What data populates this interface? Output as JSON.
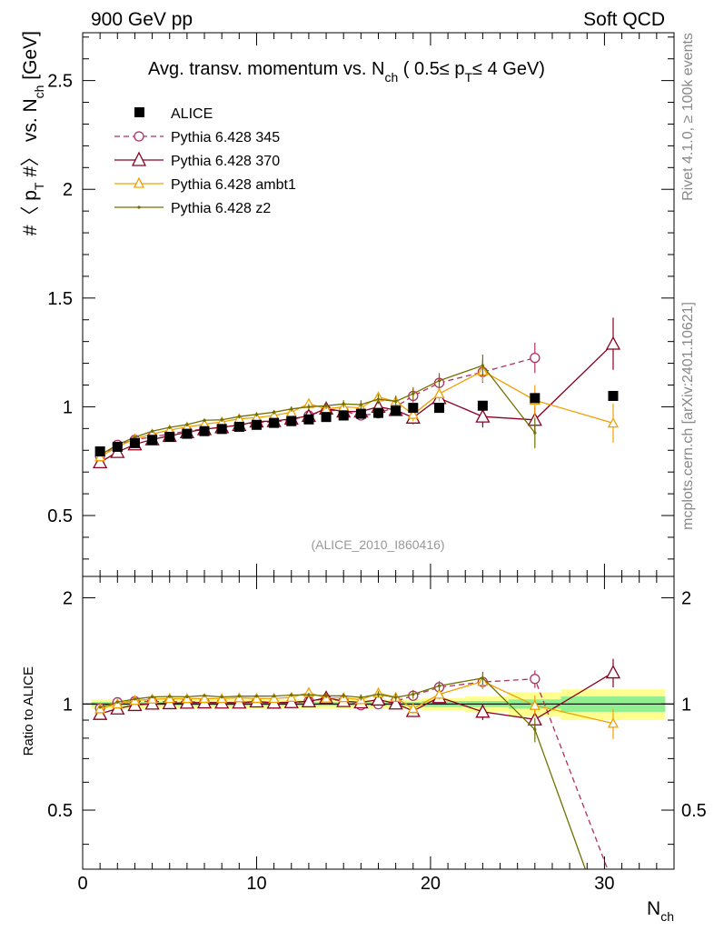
{
  "header": {
    "left": "900 GeV pp",
    "right": "Soft QCD"
  },
  "side_labels": {
    "rivet": "Rivet 4.1.0, ≥ 100k events",
    "mcplots": "mcplots.cern.ch [arXiv:2401.10621]"
  },
  "chart_data": {
    "type": "scatter",
    "title_parts": {
      "main": "Avg. transv. momentum vs. N",
      "main_sub": "ch",
      "range_open": " ( 0.5≤ p",
      "range_sub": "T",
      "range_close": "≤ 4 GeV)"
    },
    "analysis_id": "(ALICE_2010_I860416)",
    "ylabel_parts": {
      "a": "#〈 p",
      "a_sub": "T",
      "b": " #〉 vs. N",
      "b_sub": "ch",
      "c": " [GeV]"
    },
    "ratio_ylabel": "Ratio to ALICE",
    "xlabel": "N",
    "xlabel_sub": "ch",
    "xlim": [
      0,
      34
    ],
    "ylim": [
      0.22,
      2.72
    ],
    "ratio_ylim": [
      0.34,
      2.3
    ],
    "x_ticks": [
      "0",
      "10",
      "20",
      "30"
    ],
    "y_ticks": [
      "0.5",
      "1",
      "1.5",
      "2",
      "2.5"
    ],
    "ratio_y_ticks": [
      "0.5",
      "1",
      "2"
    ],
    "legend_position": "top-left",
    "colors": {
      "alice": "#000000",
      "p345": "#b03060",
      "p370": "#8b0020",
      "ambt1": "#f0a000",
      "z2": "#707000",
      "band_inner": "#90f090",
      "band_outer": "#ffff90"
    },
    "alice": {
      "name": "ALICE",
      "x": [
        1,
        2,
        3,
        4,
        5,
        6,
        7,
        8,
        9,
        10,
        11,
        12,
        13,
        14,
        15,
        16,
        17,
        18,
        19,
        20.5,
        23,
        26,
        30.5
      ],
      "y": [
        0.795,
        0.816,
        0.833,
        0.848,
        0.862,
        0.876,
        0.888,
        0.898,
        0.908,
        0.917,
        0.926,
        0.934,
        0.942,
        0.953,
        0.96,
        0.968,
        0.972,
        0.982,
        0.995,
        0.995,
        1.005,
        1.04,
        1.05
      ],
      "band": [
        {
          "x0": 0.5,
          "x1": 19.5,
          "inner": 0.012,
          "outer": 0.03
        },
        {
          "x0": 19.5,
          "x1": 22,
          "inner": 0.02,
          "outer": 0.04
        },
        {
          "x0": 22,
          "x1": 24.5,
          "inner": 0.02,
          "outer": 0.05
        },
        {
          "x0": 24.5,
          "x1": 27.5,
          "inner": 0.03,
          "outer": 0.08
        },
        {
          "x0": 27.5,
          "x1": 33.5,
          "inner": 0.05,
          "outer": 0.1
        }
      ]
    },
    "series": [
      {
        "key": "p345",
        "name": "Pythia 6.428 345",
        "marker": "circle",
        "dash": "6,4",
        "x": [
          1,
          2,
          3,
          4,
          5,
          6,
          7,
          8,
          9,
          10,
          11,
          12,
          13,
          14,
          15,
          16,
          17,
          18,
          19,
          20.5,
          23,
          26
        ],
        "y": [
          0.773,
          0.825,
          0.848,
          0.862,
          0.874,
          0.889,
          0.898,
          0.905,
          0.916,
          0.928,
          0.93,
          0.94,
          0.96,
          0.985,
          0.98,
          0.96,
          0.97,
          1.0,
          1.05,
          1.11,
          1.16,
          1.225
        ],
        "err": [
          0.006,
          0.006,
          0.006,
          0.007,
          0.007,
          0.008,
          0.008,
          0.009,
          0.009,
          0.01,
          0.01,
          0.012,
          0.013,
          0.015,
          0.017,
          0.02,
          0.022,
          0.026,
          0.03,
          0.035,
          0.05,
          0.07
        ],
        "ratio_tail": [
          [
            26,
            1.18
          ],
          [
            30.6,
            0.3
          ]
        ]
      },
      {
        "key": "p370",
        "name": "Pythia 6.428 370",
        "marker": "triangle",
        "dash": "",
        "x": [
          1,
          2,
          3,
          4,
          5,
          6,
          7,
          8,
          9,
          10,
          11,
          12,
          13,
          14,
          15,
          16,
          17,
          18,
          19,
          20.5,
          23,
          26,
          30.5
        ],
        "y": [
          0.745,
          0.792,
          0.827,
          0.85,
          0.866,
          0.883,
          0.897,
          0.906,
          0.916,
          0.932,
          0.934,
          0.945,
          0.958,
          0.992,
          0.978,
          0.978,
          1.0,
          0.985,
          0.95,
          1.04,
          0.955,
          0.94,
          1.29
        ],
        "err": [
          0.006,
          0.006,
          0.006,
          0.007,
          0.007,
          0.008,
          0.008,
          0.009,
          0.009,
          0.01,
          0.01,
          0.012,
          0.013,
          0.015,
          0.017,
          0.02,
          0.022,
          0.026,
          0.03,
          0.035,
          0.05,
          0.06,
          0.12
        ]
      },
      {
        "key": "ambt1",
        "name": "Pythia 6.428 ambt1",
        "marker": "triangle",
        "dash": "",
        "x": [
          1,
          2,
          3,
          4,
          5,
          6,
          7,
          8,
          9,
          10,
          11,
          12,
          13,
          14,
          15,
          16,
          17,
          18,
          19,
          20.5,
          23,
          26,
          30.5
        ],
        "y": [
          0.77,
          0.816,
          0.852,
          0.875,
          0.893,
          0.907,
          0.92,
          0.93,
          0.945,
          0.95,
          0.96,
          0.975,
          1.015,
          0.99,
          1.0,
          0.995,
          1.045,
          1.025,
          0.965,
          1.06,
          1.165,
          1.03,
          0.925
        ],
        "err": [
          0.006,
          0.006,
          0.006,
          0.007,
          0.007,
          0.008,
          0.008,
          0.009,
          0.009,
          0.01,
          0.01,
          0.012,
          0.013,
          0.015,
          0.017,
          0.02,
          0.022,
          0.026,
          0.03,
          0.035,
          0.05,
          0.07,
          0.09
        ]
      },
      {
        "key": "z2",
        "name": "Pythia 6.428 z2",
        "marker": "dot",
        "dash": "",
        "x": [
          1,
          2,
          3,
          4,
          5,
          6,
          7,
          8,
          9,
          10,
          11,
          12,
          13,
          14,
          15,
          16,
          17,
          18,
          19,
          20.5,
          23,
          26
        ],
        "y": [
          0.778,
          0.826,
          0.86,
          0.888,
          0.905,
          0.918,
          0.938,
          0.94,
          0.955,
          0.965,
          0.975,
          0.99,
          1.0,
          1.005,
          1.013,
          1.01,
          1.035,
          1.025,
          1.06,
          1.12,
          1.19,
          0.88
        ],
        "err": [
          0.006,
          0.006,
          0.006,
          0.007,
          0.007,
          0.008,
          0.008,
          0.009,
          0.009,
          0.01,
          0.01,
          0.012,
          0.013,
          0.015,
          0.017,
          0.02,
          0.022,
          0.026,
          0.03,
          0.035,
          0.05,
          0.07
        ],
        "ratio_tail": [
          [
            26,
            0.85
          ],
          [
            29.3,
            0.3
          ]
        ]
      }
    ]
  }
}
